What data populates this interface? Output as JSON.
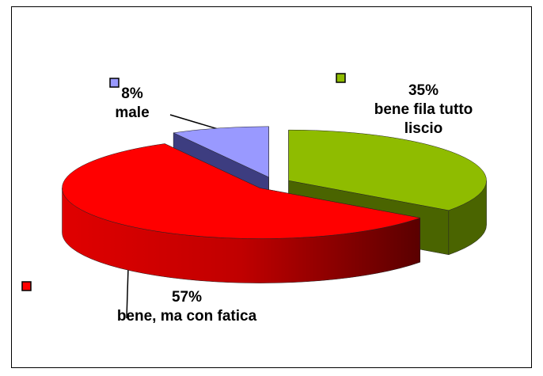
{
  "chart_data": {
    "type": "pie",
    "categories": [
      "bene fila tutto liscio",
      "bene, ma con fatica",
      "male"
    ],
    "values": [
      35,
      57,
      8
    ],
    "value_labels": [
      "35%",
      "57%",
      "8%"
    ],
    "colors": [
      "#8fbc00",
      "#ff0000",
      "#9999ff"
    ]
  }
}
